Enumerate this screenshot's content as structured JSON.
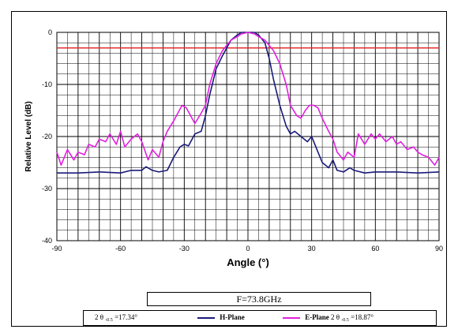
{
  "chart_data": {
    "type": "line",
    "xlabel": "Angle (°)",
    "ylabel": "Relative Level (dB)",
    "xlim": [
      -90,
      90
    ],
    "ylim": [
      -40,
      0
    ],
    "xticks": [
      "-90",
      "-60",
      "-30",
      "0",
      "30",
      "60",
      "90"
    ],
    "yticks": [
      "0",
      "-10",
      "-20",
      "-30",
      "-40"
    ],
    "grid": true,
    "reference_line": {
      "y": -3,
      "color": "#e03030"
    },
    "series": [
      {
        "name": "H-Plane",
        "color": "#1a1a7a",
        "x": [
          -90,
          -80,
          -70,
          -60,
          -55,
          -50,
          -48,
          -45,
          -42,
          -38,
          -35,
          -32,
          -30,
          -28,
          -25,
          -22,
          -20,
          -18,
          -15,
          -12,
          -10,
          -8,
          -5,
          -3,
          0,
          3,
          5,
          8,
          10,
          12,
          15,
          18,
          20,
          22,
          25,
          28,
          30,
          32,
          35,
          38,
          40,
          42,
          45,
          48,
          50,
          55,
          60,
          70,
          80,
          90
        ],
        "y": [
          -27,
          -27,
          -26.8,
          -27,
          -26.5,
          -26.5,
          -25.8,
          -26.5,
          -26.8,
          -26.5,
          -24,
          -22,
          -21.5,
          -21.8,
          -19.5,
          -19,
          -16,
          -12,
          -7,
          -4.5,
          -3,
          -1.5,
          -0.5,
          0,
          0,
          0,
          -0.5,
          -2,
          -5,
          -9,
          -14,
          -18,
          -19.5,
          -19,
          -20,
          -21,
          -20,
          -22,
          -25,
          -26,
          -24.5,
          -26.5,
          -26.8,
          -26,
          -26.5,
          -27,
          -26.8,
          -26.8,
          -27,
          -26.8
        ]
      },
      {
        "name": "E-Plane",
        "color": "#e020e0",
        "x": [
          -90,
          -88,
          -85,
          -82,
          -80,
          -77,
          -75,
          -72,
          -70,
          -67,
          -65,
          -62,
          -60,
          -58,
          -55,
          -52,
          -50,
          -47,
          -45,
          -42,
          -40,
          -38,
          -35,
          -33,
          -31,
          -29,
          -27,
          -25,
          -22,
          -20,
          -18,
          -15,
          -12,
          -10,
          -8,
          -5,
          -3,
          0,
          3,
          5,
          8,
          10,
          12,
          15,
          18,
          20,
          23,
          25,
          27,
          29,
          31,
          33,
          35,
          38,
          40,
          42,
          45,
          47,
          50,
          52,
          55,
          58,
          60,
          62,
          65,
          68,
          70,
          72,
          75,
          78,
          80,
          82,
          85,
          88,
          90
        ],
        "y": [
          -23,
          -25.5,
          -22.5,
          -24.5,
          -23,
          -23.5,
          -21.5,
          -22,
          -20.5,
          -21,
          -19.5,
          -21.5,
          -19,
          -22,
          -20.5,
          -19.5,
          -21,
          -24.5,
          -22.5,
          -24,
          -21,
          -19,
          -17,
          -15.5,
          -14,
          -14.5,
          -16,
          -17.5,
          -15.5,
          -14,
          -10,
          -6,
          -3.5,
          -2.5,
          -1.5,
          -0.8,
          -0.3,
          0,
          -0.3,
          -0.8,
          -1.5,
          -2.5,
          -3.5,
          -6,
          -10,
          -14,
          -16,
          -16.5,
          -15,
          -14,
          -14,
          -14.5,
          -16.5,
          -19,
          -20.5,
          -23,
          -24.5,
          -23,
          -24,
          -19.5,
          -21.5,
          -19.5,
          -20.5,
          -19.5,
          -21,
          -20,
          -21.5,
          -21,
          -22.5,
          -22,
          -23,
          -23.5,
          -24,
          -25.5,
          -24
        ]
      }
    ]
  },
  "info": {
    "frequency": "F=73.8GHz",
    "h_beamwidth": "17.34°",
    "h_label": "H-Plane",
    "e_label": "E-Plane",
    "e_beamwidth": "18.87°",
    "theta_prefix": "2 θ",
    "theta_sub": "-0.5",
    "eq": "="
  }
}
